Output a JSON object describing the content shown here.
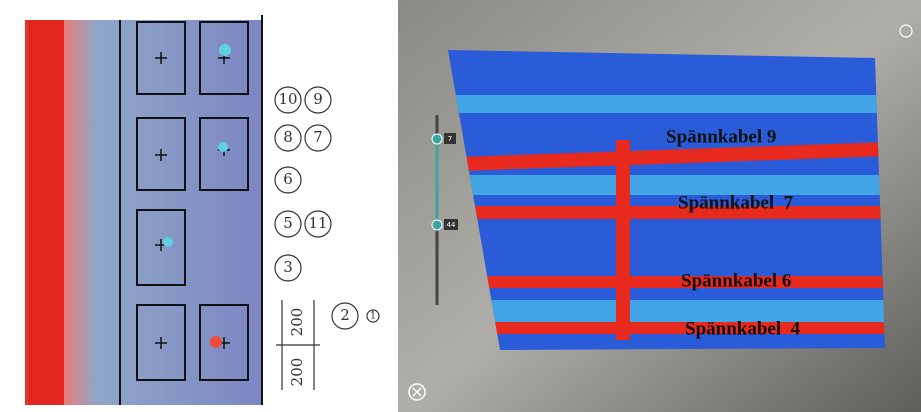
{
  "left_panel": {
    "circled_labels": [
      "10",
      "9",
      "8",
      "7",
      "6",
      "5",
      "11",
      "3",
      "2",
      "1"
    ],
    "dimensions": [
      "200",
      "200"
    ]
  },
  "right_panel": {
    "slider": {
      "upper": "7",
      "lower": "44"
    },
    "cable_labels": [
      "Spännkabel 9",
      "Spännkabel  7",
      "Spännkabel 6",
      "Spännkabel  4"
    ]
  }
}
